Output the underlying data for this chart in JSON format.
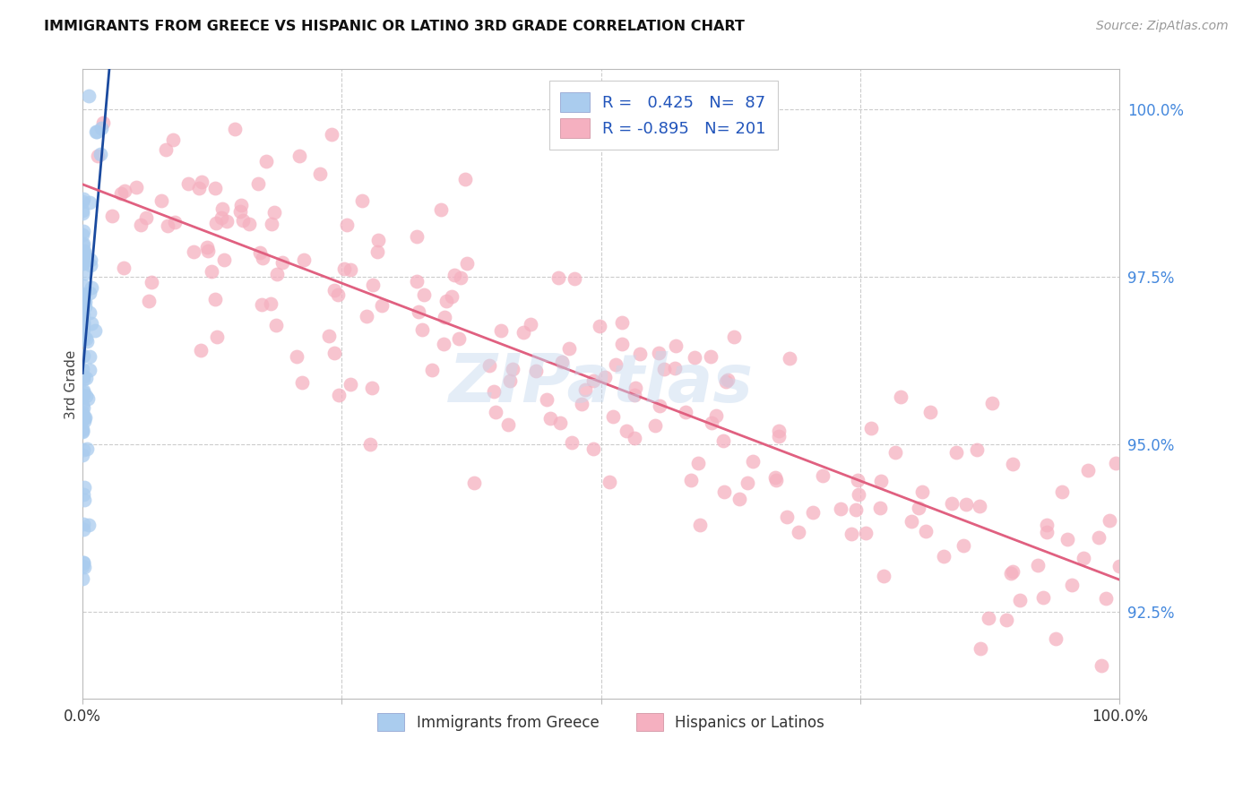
{
  "title": "IMMIGRANTS FROM GREECE VS HISPANIC OR LATINO 3RD GRADE CORRELATION CHART",
  "source": "Source: ZipAtlas.com",
  "ylabel": "3rd Grade",
  "ytick_labels": [
    "100.0%",
    "97.5%",
    "95.0%",
    "92.5%"
  ],
  "ytick_values": [
    1.0,
    0.975,
    0.95,
    0.925
  ],
  "ymin": 0.912,
  "ymax": 1.006,
  "xmin": 0.0,
  "xmax": 1.0,
  "blue_R": 0.425,
  "blue_N": 87,
  "pink_R": -0.895,
  "pink_N": 201,
  "blue_color": "#aaccee",
  "blue_line_color": "#1a4a9f",
  "pink_color": "#f5b0c0",
  "pink_line_color": "#e06080",
  "watermark": "ZIPatlas",
  "bg_color": "#ffffff",
  "grid_color": "#cccccc",
  "seed": 42
}
